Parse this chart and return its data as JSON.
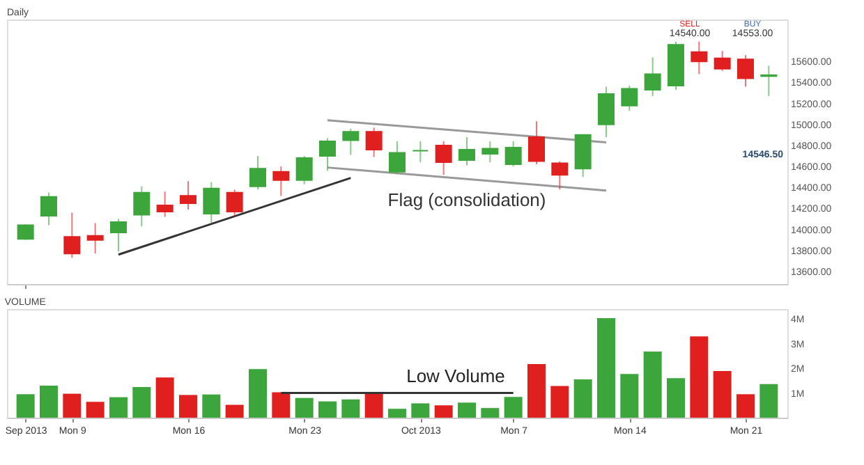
{
  "chart_data": [
    {
      "type": "candlestick",
      "title": "Daily",
      "categories": [
        null,
        null,
        null,
        null,
        null,
        null,
        null,
        null,
        null,
        null,
        null,
        null,
        null,
        null,
        null,
        null,
        null,
        null,
        null,
        null,
        null,
        null,
        null,
        null,
        null,
        null,
        null,
        null,
        null,
        null,
        null,
        null,
        null
      ],
      "ohlc": [
        [
          13910,
          14050,
          13900,
          14040
        ],
        [
          14130,
          14350,
          14040,
          14310
        ],
        [
          13930,
          14160,
          13730,
          13770
        ],
        [
          13940,
          14060,
          13770,
          13900
        ],
        [
          13970,
          14100,
          13790,
          14070
        ],
        [
          14140,
          14410,
          14030,
          14350
        ],
        [
          14230,
          14360,
          14120,
          14170
        ],
        [
          14320,
          14460,
          14190,
          14250
        ],
        [
          14150,
          14450,
          14060,
          14390
        ],
        [
          14350,
          14380,
          14120,
          14170
        ],
        [
          14410,
          14700,
          14380,
          14580
        ],
        [
          14550,
          14600,
          14320,
          14470
        ],
        [
          14470,
          14700,
          14430,
          14680
        ],
        [
          14700,
          14870,
          14560,
          14840
        ],
        [
          14850,
          14960,
          14710,
          14930
        ],
        [
          14930,
          14970,
          14690,
          14760
        ],
        [
          14550,
          14840,
          14530,
          14730
        ],
        [
          14750,
          14840,
          14640,
          14750
        ],
        [
          14800,
          14840,
          14520,
          14640
        ],
        [
          14660,
          14880,
          14610,
          14760
        ],
        [
          14720,
          14840,
          14640,
          14770
        ],
        [
          14620,
          14840,
          14600,
          14780
        ],
        [
          14880,
          15030,
          14620,
          14650
        ],
        [
          14630,
          14650,
          14380,
          14520
        ],
        [
          14580,
          14900,
          14500,
          14900
        ],
        [
          15000,
          15360,
          14880,
          15290
        ],
        [
          15180,
          15370,
          15130,
          15340
        ],
        [
          15330,
          15640,
          15270,
          15480
        ],
        [
          15370,
          15790,
          15330,
          15760
        ],
        [
          15690,
          15790,
          15480,
          15600
        ],
        [
          15630,
          15700,
          15510,
          15530
        ],
        [
          15620,
          15660,
          15360,
          15440
        ],
        [
          15460,
          15560,
          15270,
          15470
        ]
      ],
      "colors": [
        "#3ca63c",
        "#3ca63c",
        "#e01f1f",
        "#e01f1f",
        "#3ca63c",
        "#3ca63c",
        "#e01f1f",
        "#e01f1f",
        "#3ca63c",
        "#e01f1f",
        "#3ca63c",
        "#e01f1f",
        "#3ca63c",
        "#3ca63c",
        "#3ca63c",
        "#e01f1f",
        "#3ca63c",
        "#3ca63c",
        "#e01f1f",
        "#3ca63c",
        "#3ca63c",
        "#3ca63c",
        "#e01f1f",
        "#e01f1f",
        "#3ca63c",
        "#3ca63c",
        "#3ca63c",
        "#3ca63c",
        "#3ca63c",
        "#e01f1f",
        "#e01f1f",
        "#e01f1f",
        "#3ca63c"
      ],
      "ylim": [
        13480,
        16000
      ],
      "yticks": [
        {
          "value": 13600,
          "label": "13600.00"
        },
        {
          "value": 13800,
          "label": "13800.00"
        },
        {
          "value": 14000,
          "label": "14000.00"
        },
        {
          "value": 14200,
          "label": "14200.00"
        },
        {
          "value": 14400,
          "label": "14400.00"
        },
        {
          "value": 14600,
          "label": "14600.00"
        },
        {
          "value": 14800,
          "label": "14800.00"
        },
        {
          "value": 15000,
          "label": "15000.00"
        },
        {
          "value": 15200,
          "label": "15200.00"
        },
        {
          "value": 15400,
          "label": "15400.00"
        },
        {
          "value": 15600,
          "label": "15600.00"
        }
      ],
      "tick_labels": "y",
      "series": [
        {
          "type": "line",
          "values": [
            null,
            null,
            null,
            null,
            null,
            null,
            null,
            null,
            null,
            null,
            null,
            null,
            null,
            15040,
            null,
            null,
            null,
            null,
            null,
            null,
            null,
            null,
            null,
            null,
            null,
            14830,
            null,
            null,
            null,
            null,
            null,
            null,
            null
          ],
          "color": "#999999"
        },
        {
          "type": "line",
          "values": [
            null,
            null,
            null,
            null,
            null,
            null,
            null,
            null,
            null,
            null,
            null,
            null,
            null,
            14590,
            null,
            null,
            null,
            null,
            null,
            null,
            null,
            null,
            null,
            null,
            null,
            14370,
            null,
            null,
            null,
            null,
            null,
            null,
            null
          ],
          "color": "#999999"
        },
        {
          "type": "line",
          "values": [
            null,
            null,
            null,
            null,
            13760,
            null,
            null,
            null,
            null,
            null,
            null,
            null,
            null,
            null,
            14490,
            null,
            null,
            null,
            null,
            null,
            null,
            null,
            null,
            null,
            null,
            null,
            null,
            null,
            null,
            null,
            null,
            null,
            null
          ],
          "color": "#333333"
        }
      ],
      "annotations": [
        "Flag (consolidation)",
        "14546.50",
        "SELL",
        "14540.00",
        "BUY",
        "14553.00"
      ]
    },
    {
      "type": "bar",
      "title": "VOLUME",
      "categories": [
        "Sep 2013",
        null,
        "Mon 9",
        null,
        null,
        null,
        null,
        "Mon 16",
        null,
        null,
        null,
        null,
        "Mon 23",
        null,
        null,
        null,
        null,
        "Oct 2013",
        null,
        null,
        null,
        "Mon 7",
        null,
        null,
        null,
        null,
        "Mon 14",
        null,
        null,
        null,
        null,
        "Mon 21",
        null
      ],
      "values": [
        0.95,
        1.3,
        0.97,
        0.64,
        0.83,
        1.24,
        1.63,
        0.92,
        0.94,
        0.52,
        1.97,
        1.03,
        0.8,
        0.66,
        0.74,
        0.97,
        0.36,
        0.58,
        0.5,
        0.61,
        0.39,
        0.84,
        2.17,
        1.28,
        1.55,
        4.03,
        1.77,
        2.68,
        1.6,
        3.29,
        1.89,
        0.95,
        1.36
      ],
      "colors": [
        "#3ca63c",
        "#3ca63c",
        "#e01f1f",
        "#e01f1f",
        "#3ca63c",
        "#3ca63c",
        "#e01f1f",
        "#e01f1f",
        "#3ca63c",
        "#e01f1f",
        "#3ca63c",
        "#e01f1f",
        "#3ca63c",
        "#3ca63c",
        "#3ca63c",
        "#e01f1f",
        "#3ca63c",
        "#3ca63c",
        "#e01f1f",
        "#3ca63c",
        "#3ca63c",
        "#3ca63c",
        "#e01f1f",
        "#e01f1f",
        "#3ca63c",
        "#3ca63c",
        "#3ca63c",
        "#3ca63c",
        "#3ca63c",
        "#e01f1f",
        "#e01f1f",
        "#e01f1f",
        "#3ca63c"
      ],
      "ylim": [
        0,
        4.4
      ],
      "yticks": [
        {
          "value": 1,
          "label": "1M"
        },
        {
          "value": 2,
          "label": "2M"
        },
        {
          "value": 3,
          "label": "3M"
        },
        {
          "value": 4,
          "label": "4M"
        }
      ],
      "series": [
        {
          "type": "line",
          "values": [
            null,
            null,
            null,
            null,
            null,
            null,
            null,
            null,
            null,
            null,
            null,
            1.0,
            null,
            null,
            null,
            null,
            null,
            null,
            null,
            null,
            null,
            1.0,
            null,
            null,
            null,
            null,
            null,
            null,
            null,
            null,
            null,
            null,
            null
          ],
          "color": "#333333"
        }
      ],
      "annotations": [
        {
          "text": "Low Volume",
          "y": 1.0
        }
      ]
    }
  ]
}
